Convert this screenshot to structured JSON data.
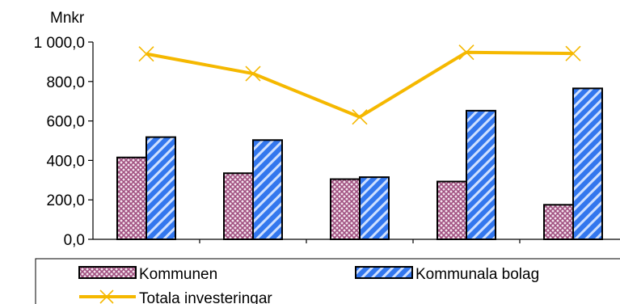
{
  "chart_data": {
    "type": "bar",
    "unit_label": "Mnkr",
    "categories": [
      "",
      "",
      "",
      "",
      ""
    ],
    "ylim": [
      0,
      1000
    ],
    "y_ticks": [
      0,
      200,
      400,
      600,
      800,
      1000
    ],
    "y_tick_labels": [
      "0,0",
      "200,0",
      "400,0",
      "600,0",
      "800,0",
      "1 000,0"
    ],
    "grid": false,
    "legend_position": "bottom",
    "series": [
      {
        "name": "Kommunen",
        "type": "bar",
        "pattern": "crosshatch",
        "color": "#b07090",
        "values": [
          415,
          335,
          305,
          293,
          175
        ]
      },
      {
        "name": "Kommunala bolag",
        "type": "bar",
        "pattern": "diagonal-stripes",
        "color": "#3377ee",
        "values": [
          518,
          503,
          315,
          652,
          765
        ]
      },
      {
        "name": "Totala investeringar",
        "type": "line",
        "marker": "x",
        "color": "#f5b800",
        "values": [
          940,
          840,
          620,
          948,
          942
        ]
      }
    ]
  }
}
